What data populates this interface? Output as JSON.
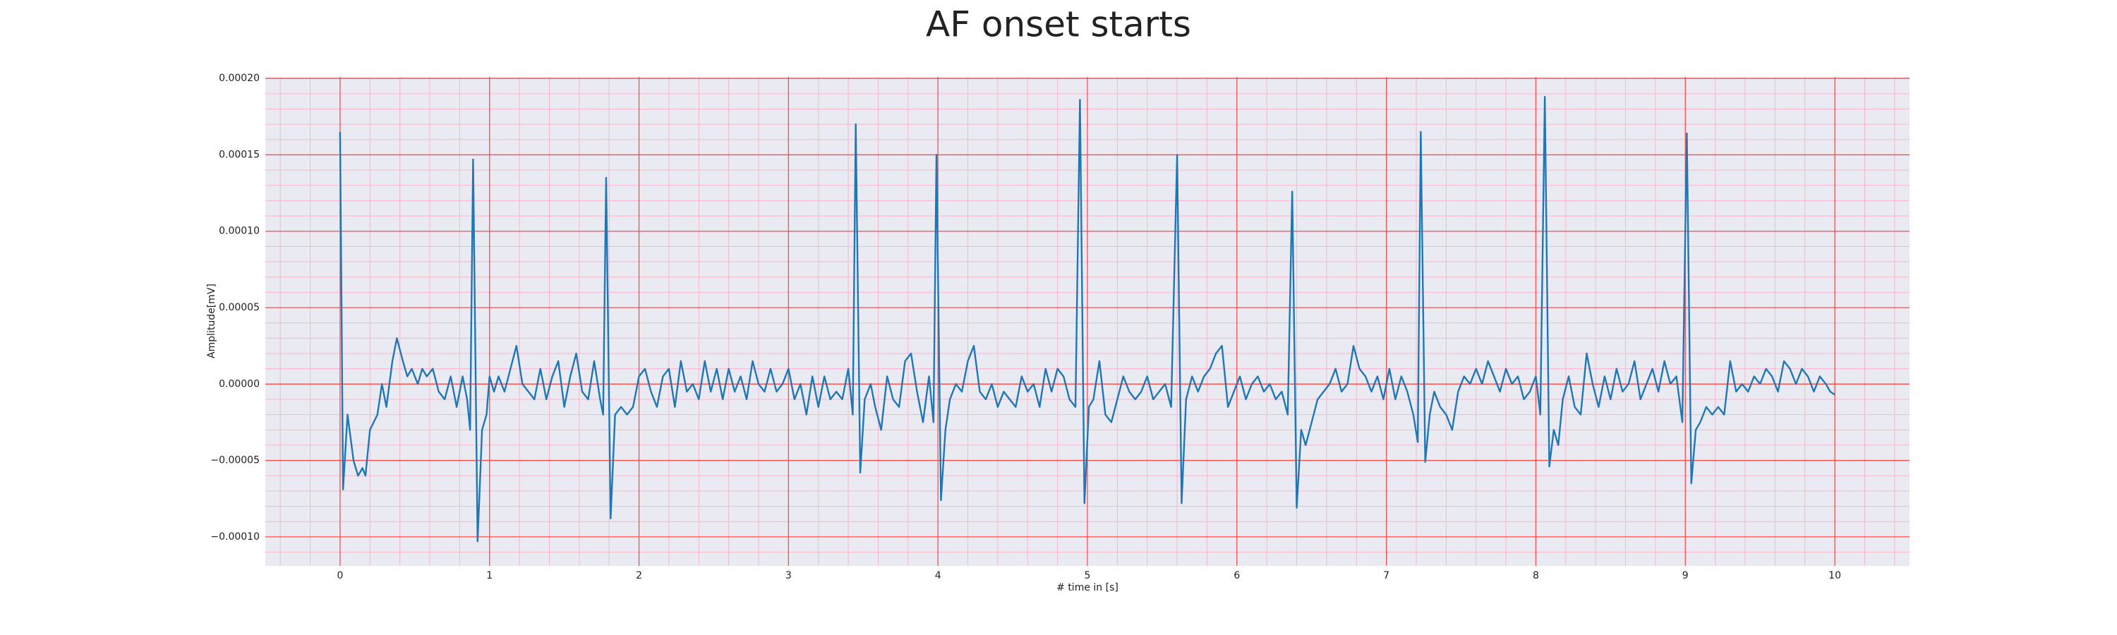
{
  "chart_data": {
    "type": "line",
    "title": "AF onset starts",
    "xlabel": "# time in [s]",
    "ylabel": "Amplitude[mV]",
    "xlim": [
      -0.5,
      10.5
    ],
    "ylim": [
      -0.000119,
      0.000201
    ],
    "xticks": [
      0,
      1,
      2,
      3,
      4,
      5,
      6,
      7,
      8,
      9,
      10
    ],
    "yticks": [
      {
        "value": -0.0001,
        "label": "−0.00010"
      },
      {
        "value": -5e-05,
        "label": "−0.00005"
      },
      {
        "value": 0,
        "label": "0.00000"
      },
      {
        "value": 5e-05,
        "label": "0.00005"
      },
      {
        "value": 0.0001,
        "label": "0.00010"
      },
      {
        "value": 0.00015,
        "label": "0.00015"
      },
      {
        "value": 0.0002,
        "label": "0.00020"
      }
    ],
    "grid": true,
    "grid_color": "#ff4d4d",
    "minor_grid": {
      "x_step": 0.2,
      "y_step": 1e-05,
      "color": "#f7b8c8"
    },
    "background": "#eaeaf2",
    "x": [
      0,
      0.02,
      0.05,
      0.09,
      0.12,
      0.15,
      0.17,
      0.2,
      0.25,
      0.28,
      0.31,
      0.35,
      0.38,
      0.42,
      0.45,
      0.48,
      0.52,
      0.55,
      0.58,
      0.62,
      0.66,
      0.7,
      0.74,
      0.78,
      0.82,
      0.85,
      0.87,
      0.89,
      0.92,
      0.95,
      0.98,
      1.0,
      1.03,
      1.06,
      1.1,
      1.14,
      1.18,
      1.22,
      1.26,
      1.3,
      1.34,
      1.38,
      1.42,
      1.46,
      1.5,
      1.54,
      1.58,
      1.62,
      1.66,
      1.7,
      1.74,
      1.76,
      1.78,
      1.81,
      1.84,
      1.88,
      1.92,
      1.96,
      2.0,
      2.04,
      2.08,
      2.12,
      2.16,
      2.2,
      2.24,
      2.28,
      2.32,
      2.36,
      2.4,
      2.44,
      2.48,
      2.52,
      2.56,
      2.6,
      2.64,
      2.68,
      2.72,
      2.76,
      2.8,
      2.84,
      2.88,
      2.92,
      2.96,
      3.0,
      3.04,
      3.08,
      3.12,
      3.16,
      3.2,
      3.24,
      3.28,
      3.32,
      3.36,
      3.4,
      3.43,
      3.45,
      3.48,
      3.51,
      3.55,
      3.58,
      3.62,
      3.66,
      3.7,
      3.74,
      3.78,
      3.82,
      3.86,
      3.9,
      3.94,
      3.97,
      3.99,
      4.02,
      4.05,
      4.08,
      4.12,
      4.16,
      4.2,
      4.24,
      4.28,
      4.32,
      4.36,
      4.4,
      4.44,
      4.48,
      4.52,
      4.56,
      4.6,
      4.64,
      4.68,
      4.72,
      4.76,
      4.8,
      4.84,
      4.88,
      4.92,
      4.95,
      4.98,
      5.01,
      5.04,
      5.08,
      5.12,
      5.16,
      5.2,
      5.24,
      5.28,
      5.32,
      5.36,
      5.4,
      5.44,
      5.48,
      5.52,
      5.56,
      5.6,
      5.63,
      5.66,
      5.7,
      5.74,
      5.78,
      5.82,
      5.86,
      5.9,
      5.94,
      5.98,
      6.02,
      6.06,
      6.1,
      6.14,
      6.18,
      6.22,
      6.26,
      6.3,
      6.34,
      6.37,
      6.4,
      6.43,
      6.46,
      6.5,
      6.54,
      6.58,
      6.62,
      6.66,
      6.7,
      6.74,
      6.78,
      6.82,
      6.86,
      6.9,
      6.94,
      6.98,
      7.02,
      7.06,
      7.1,
      7.14,
      7.18,
      7.21,
      7.23,
      7.26,
      7.29,
      7.32,
      7.36,
      7.4,
      7.44,
      7.48,
      7.52,
      7.56,
      7.6,
      7.64,
      7.68,
      7.72,
      7.76,
      7.8,
      7.84,
      7.88,
      7.92,
      7.96,
      8.0,
      8.03,
      8.06,
      8.09,
      8.12,
      8.15,
      8.18,
      8.22,
      8.26,
      8.3,
      8.34,
      8.38,
      8.42,
      8.46,
      8.5,
      8.54,
      8.58,
      8.62,
      8.66,
      8.7,
      8.74,
      8.78,
      8.82,
      8.86,
      8.9,
      8.94,
      8.98,
      9.01,
      9.04,
      9.07,
      9.1,
      9.14,
      9.18,
      9.22,
      9.26,
      9.3,
      9.34,
      9.38,
      9.42,
      9.46,
      9.5,
      9.54,
      9.58,
      9.62,
      9.66,
      9.7,
      9.74,
      9.78,
      9.82,
      9.86,
      9.9,
      9.94,
      9.97,
      10.0
    ],
    "series": [
      {
        "color": "#1f77b4",
        "values": [
          0.000165,
          -6.9e-05,
          -2e-05,
          -5e-05,
          -6e-05,
          -5.5e-05,
          -6e-05,
          -3e-05,
          -2e-05,
          0,
          -1.5e-05,
          1.5e-05,
          3e-05,
          1.5e-05,
          5e-06,
          1e-05,
          0,
          1e-05,
          5e-06,
          1e-05,
          -5e-06,
          -1e-05,
          5e-06,
          -1.5e-05,
          5e-06,
          -1e-05,
          -3e-05,
          0.000147,
          -0.000103,
          -3e-05,
          -2e-05,
          5e-06,
          -5e-06,
          5e-06,
          -5e-06,
          1e-05,
          2.5e-05,
          0,
          -5e-06,
          -1e-05,
          1e-05,
          -1e-05,
          5e-06,
          1.5e-05,
          -1.5e-05,
          5e-06,
          2e-05,
          -5e-06,
          -1e-05,
          1.5e-05,
          -1e-05,
          -2e-05,
          0.000135,
          -8.8e-05,
          -2e-05,
          -1.5e-05,
          -2e-05,
          -1.5e-05,
          5e-06,
          1e-05,
          -5e-06,
          -1.5e-05,
          5e-06,
          1e-05,
          -1.5e-05,
          1.5e-05,
          -5e-06,
          0,
          -1e-05,
          1.5e-05,
          -5e-06,
          1e-05,
          -1e-05,
          1e-05,
          -5e-06,
          5e-06,
          -1e-05,
          1.5e-05,
          0,
          -5e-06,
          1e-05,
          -5e-06,
          0,
          1e-05,
          -1e-05,
          0,
          -2e-05,
          5e-06,
          -1.5e-05,
          5e-06,
          -1e-05,
          -5e-06,
          -1e-05,
          1e-05,
          -2e-05,
          0.00017,
          -5.8e-05,
          -1e-05,
          0,
          -1.5e-05,
          -3e-05,
          5e-06,
          -1e-05,
          -1.5e-05,
          1.5e-05,
          2e-05,
          -5e-06,
          -2.5e-05,
          5e-06,
          -2.5e-05,
          0.00015,
          -7.6e-05,
          -3e-05,
          -1e-05,
          0,
          -5e-06,
          1.5e-05,
          2.5e-05,
          -5e-06,
          -1e-05,
          0,
          -1.5e-05,
          -5e-06,
          -1e-05,
          -1.5e-05,
          5e-06,
          -5e-06,
          0,
          -1.5e-05,
          1e-05,
          -5e-06,
          1e-05,
          5e-06,
          -1e-05,
          -1.5e-05,
          0.000186,
          -7.8e-05,
          -1.5e-05,
          -1e-05,
          1.5e-05,
          -2e-05,
          -2.5e-05,
          -1e-05,
          5e-06,
          -5e-06,
          -1e-05,
          -5e-06,
          5e-06,
          -1e-05,
          -5e-06,
          0,
          -1.5e-05,
          0.00015,
          -7.8e-05,
          -1e-05,
          5e-06,
          -5e-06,
          5e-06,
          1e-05,
          2e-05,
          2.5e-05,
          -1.5e-05,
          -5e-06,
          5e-06,
          -1e-05,
          0,
          5e-06,
          -5e-06,
          0,
          -1e-05,
          -5e-06,
          -2e-05,
          0.000126,
          -8.1e-05,
          -3e-05,
          -4e-05,
          -2.5e-05,
          -1e-05,
          -5e-06,
          0,
          1e-05,
          -5e-06,
          0,
          2.5e-05,
          1e-05,
          5e-06,
          -5e-06,
          5e-06,
          -1e-05,
          1e-05,
          -1e-05,
          5e-06,
          -5e-06,
          -2e-05,
          -3.8e-05,
          0.000165,
          -5.1e-05,
          -2e-05,
          -5e-06,
          -1.5e-05,
          -2e-05,
          -3e-05,
          -5e-06,
          5e-06,
          0,
          1e-05,
          0,
          1.5e-05,
          5e-06,
          -5e-06,
          1e-05,
          0,
          5e-06,
          -1e-05,
          -5e-06,
          5e-06,
          -2e-05,
          0.000188,
          -5.4e-05,
          -3e-05,
          -4e-05,
          -1e-05,
          5e-06,
          -1.5e-05,
          -2e-05,
          2e-05,
          0,
          -1.5e-05,
          5e-06,
          -1e-05,
          1e-05,
          -5e-06,
          0,
          1.5e-05,
          -1e-05,
          0,
          1e-05,
          -5e-06,
          1.5e-05,
          0,
          5e-06,
          -2.5e-05,
          0.000164,
          -6.5e-05,
          -3e-05,
          -2.5e-05,
          -1.5e-05,
          -2e-05,
          -1.5e-05,
          -2e-05,
          1.5e-05,
          -5e-06,
          0,
          -5e-06,
          5e-06,
          0,
          1e-05,
          5e-06,
          -5e-06,
          1.5e-05,
          1e-05,
          0,
          1e-05,
          5e-06,
          -5e-06,
          5e-06,
          0,
          -5e-06,
          -7e-06
        ]
      }
    ]
  }
}
